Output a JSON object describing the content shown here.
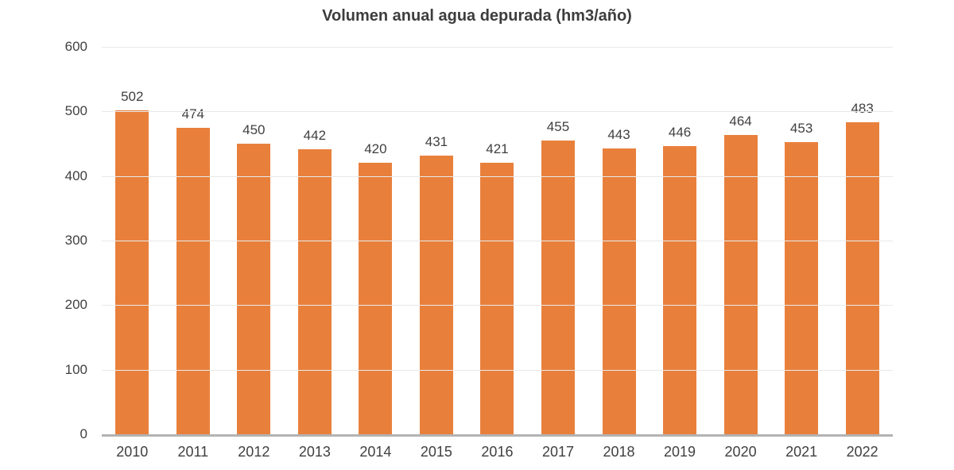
{
  "chart_data": {
    "type": "bar",
    "title": "Volumen anual agua depurada (hm3/año)",
    "categories": [
      "2010",
      "2011",
      "2012",
      "2013",
      "2014",
      "2015",
      "2016",
      "2017",
      "2018",
      "2019",
      "2020",
      "2021",
      "2022"
    ],
    "values": [
      502,
      474,
      450,
      442,
      420,
      431,
      421,
      455,
      443,
      446,
      464,
      453,
      483
    ],
    "xlabel": "",
    "ylabel": "",
    "ylim": [
      0,
      600
    ],
    "yticks": [
      0,
      100,
      200,
      300,
      400,
      500,
      600
    ],
    "grid": true,
    "legend_position": "none",
    "bar_color": "#E8803C",
    "value_label_color": "#404040",
    "tick_label_color": "#404040",
    "gridline_color": "#e9e9e9",
    "axis_line_color": "#b3b3b3",
    "background": "#ffffff"
  }
}
